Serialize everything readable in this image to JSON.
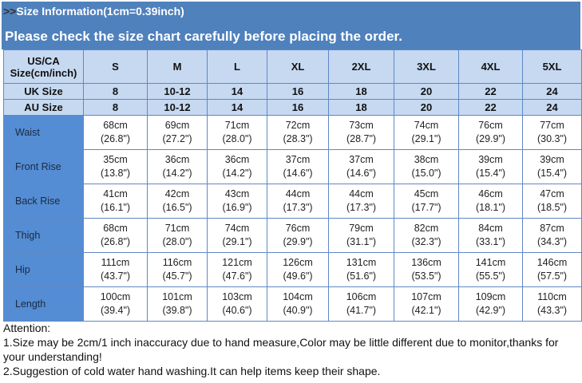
{
  "header": {
    "arrow": ">>",
    "title": "Size Information(1cm=0.39inch)",
    "subtitle": "Please check the size chart carefully before placing the order."
  },
  "table": {
    "header_label": [
      "US/CA",
      "Size(cm/inch)"
    ],
    "sizes": [
      "S",
      "M",
      "L",
      "XL",
      "2XL",
      "3XL",
      "4XL",
      "5XL"
    ],
    "uk": {
      "label": "UK Size",
      "values": [
        "8",
        "10-12",
        "14",
        "16",
        "18",
        "20",
        "22",
        "24"
      ]
    },
    "au": {
      "label": "AU Size",
      "values": [
        "8",
        "10-12",
        "14",
        "16",
        "18",
        "20",
        "22",
        "24"
      ]
    },
    "rows": [
      {
        "label": "Waist",
        "cm": [
          "68cm",
          "69cm",
          "71cm",
          "72cm",
          "73cm",
          "74cm",
          "76cm",
          "77cm"
        ],
        "in": [
          "(26.8\")",
          "(27.2\")",
          "(28.0\")",
          "(28.3\")",
          "(28.7\")",
          "(29.1\")",
          "(29.9\")",
          "(30.3\")"
        ]
      },
      {
        "label": "Front Rise",
        "cm": [
          "35cm",
          "36cm",
          "36cm",
          "37cm",
          "37cm",
          "38cm",
          "39cm",
          "39cm"
        ],
        "in": [
          "(13.8\")",
          "(14.2\")",
          "(14.2\")",
          "(14.6\")",
          "(14.6\")",
          "(15.0\")",
          "(15.4\")",
          "(15.4\")"
        ]
      },
      {
        "label": "Back Rise",
        "cm": [
          "41cm",
          "42cm",
          "43cm",
          "44cm",
          "44cm",
          "45cm",
          "46cm",
          "47cm"
        ],
        "in": [
          "(16.1\")",
          "(16.5\")",
          "(16.9\")",
          "(17.3\")",
          "(17.3\")",
          "(17.7\")",
          "(18.1\")",
          "(18.5\")"
        ]
      },
      {
        "label": "Thigh",
        "cm": [
          "68cm",
          "71cm",
          "74cm",
          "76cm",
          "79cm",
          "82cm",
          "84cm",
          "87cm"
        ],
        "in": [
          "(26.8\")",
          "(28.0\")",
          "(29.1\")",
          "(29.9\")",
          "(31.1\")",
          "(32.3\")",
          "(33.1\")",
          "(34.3\")"
        ]
      },
      {
        "label": "Hip",
        "cm": [
          "111cm",
          "116cm",
          "121cm",
          "126cm",
          "131cm",
          "136cm",
          "141cm",
          "146cm"
        ],
        "in": [
          "(43.7\")",
          "(45.7\")",
          "(47.6\")",
          "(49.6\")",
          "(51.6\")",
          "(53.5\")",
          "(55.5\")",
          "(57.5\")"
        ]
      },
      {
        "label": "Length",
        "cm": [
          "100cm",
          "101cm",
          "103cm",
          "104cm",
          "106cm",
          "107cm",
          "109cm",
          "110cm"
        ],
        "in": [
          "(39.4\")",
          "(39.8\")",
          "(40.6\")",
          "(40.9\")",
          "(41.7\")",
          "(42.1\")",
          "(42.9\")",
          "(43.3\")"
        ]
      }
    ]
  },
  "attention": {
    "title": "Attention:",
    "lines": [
      "1.Size may be 2cm/1 inch inaccuracy due to hand measure,Color may be little different due to monitor,thanks for your understanding!",
      "2.Suggestion of cold water hand washing.It can help items keep their shape."
    ]
  },
  "colors": {
    "header": "#4f81bd",
    "light": "#c6d9f1",
    "label": "#548dd4"
  }
}
